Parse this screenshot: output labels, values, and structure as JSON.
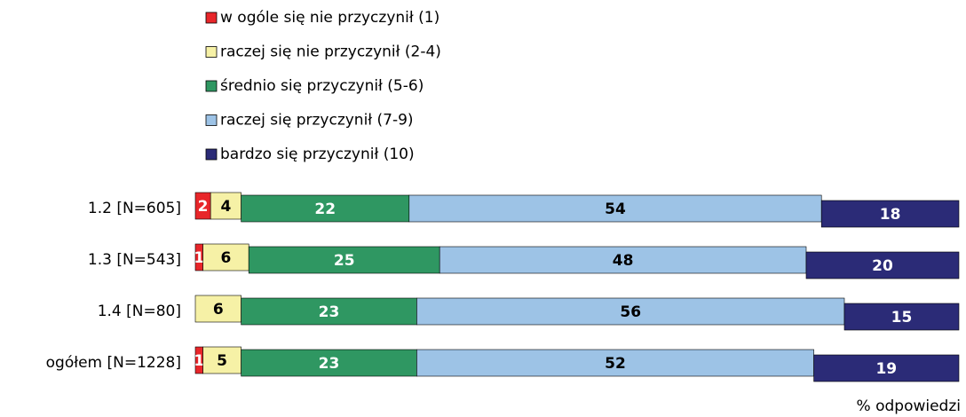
{
  "chart_data": {
    "type": "stacked-bar-horizontal",
    "categories": [
      "1.2 [N=605]",
      "1.3 [N=543]",
      "1.4 [N=80]",
      "ogółem [N=1228]"
    ],
    "series": [
      {
        "name": "w ogóle się nie przyczynił (1)",
        "color": "#e8262a",
        "values": [
          2,
          1,
          0,
          1
        ]
      },
      {
        "name": "raczej się nie przyczynił (2-4)",
        "color": "#f6f1a6",
        "values": [
          4,
          6,
          6,
          5
        ]
      },
      {
        "name": "średnio się przyczynił (5-6)",
        "color": "#2f9762",
        "values": [
          22,
          25,
          23,
          23
        ]
      },
      {
        "name": "raczej się przyczynił (7-9)",
        "color": "#9dc3e6",
        "values": [
          54,
          48,
          56,
          52
        ]
      },
      {
        "name": "bardzo się przyczynił (10)",
        "color": "#2b2b77",
        "values": [
          18,
          20,
          15,
          19
        ]
      }
    ],
    "x_label": "% odpowiedzi",
    "legend": "top"
  }
}
